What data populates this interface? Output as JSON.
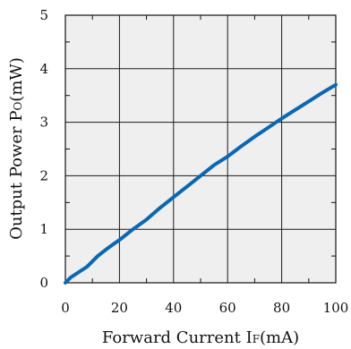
{
  "chart_data": {
    "type": "line",
    "xlabel": {
      "main": "Forward Current I",
      "sub": "F",
      "unit": "(mA)"
    },
    "ylabel": {
      "main": "Output Power P",
      "sub": "O",
      "unit": "(mW)"
    },
    "xlim": [
      0,
      100
    ],
    "ylim": [
      0,
      5
    ],
    "xticks": [
      0,
      20,
      40,
      60,
      80,
      100
    ],
    "yticks": [
      0,
      1,
      2,
      3,
      4,
      5
    ],
    "grid": true,
    "series": [
      {
        "color": "#0a67b3",
        "x": [
          0,
          2,
          5,
          8,
          10,
          12,
          15,
          18,
          20,
          25,
          30,
          35,
          40,
          45,
          50,
          55,
          60,
          65,
          70,
          75,
          80,
          85,
          90,
          95,
          100
        ],
        "y": [
          0,
          0.1,
          0.2,
          0.3,
          0.4,
          0.5,
          0.62,
          0.73,
          0.8,
          1.0,
          1.18,
          1.4,
          1.6,
          1.8,
          2.0,
          2.2,
          2.36,
          2.55,
          2.73,
          2.9,
          3.07,
          3.23,
          3.39,
          3.55,
          3.7
        ]
      }
    ],
    "colors": {
      "plot_background": "#efefef",
      "grid": "#1a1a1a",
      "axis": "#111111"
    }
  }
}
